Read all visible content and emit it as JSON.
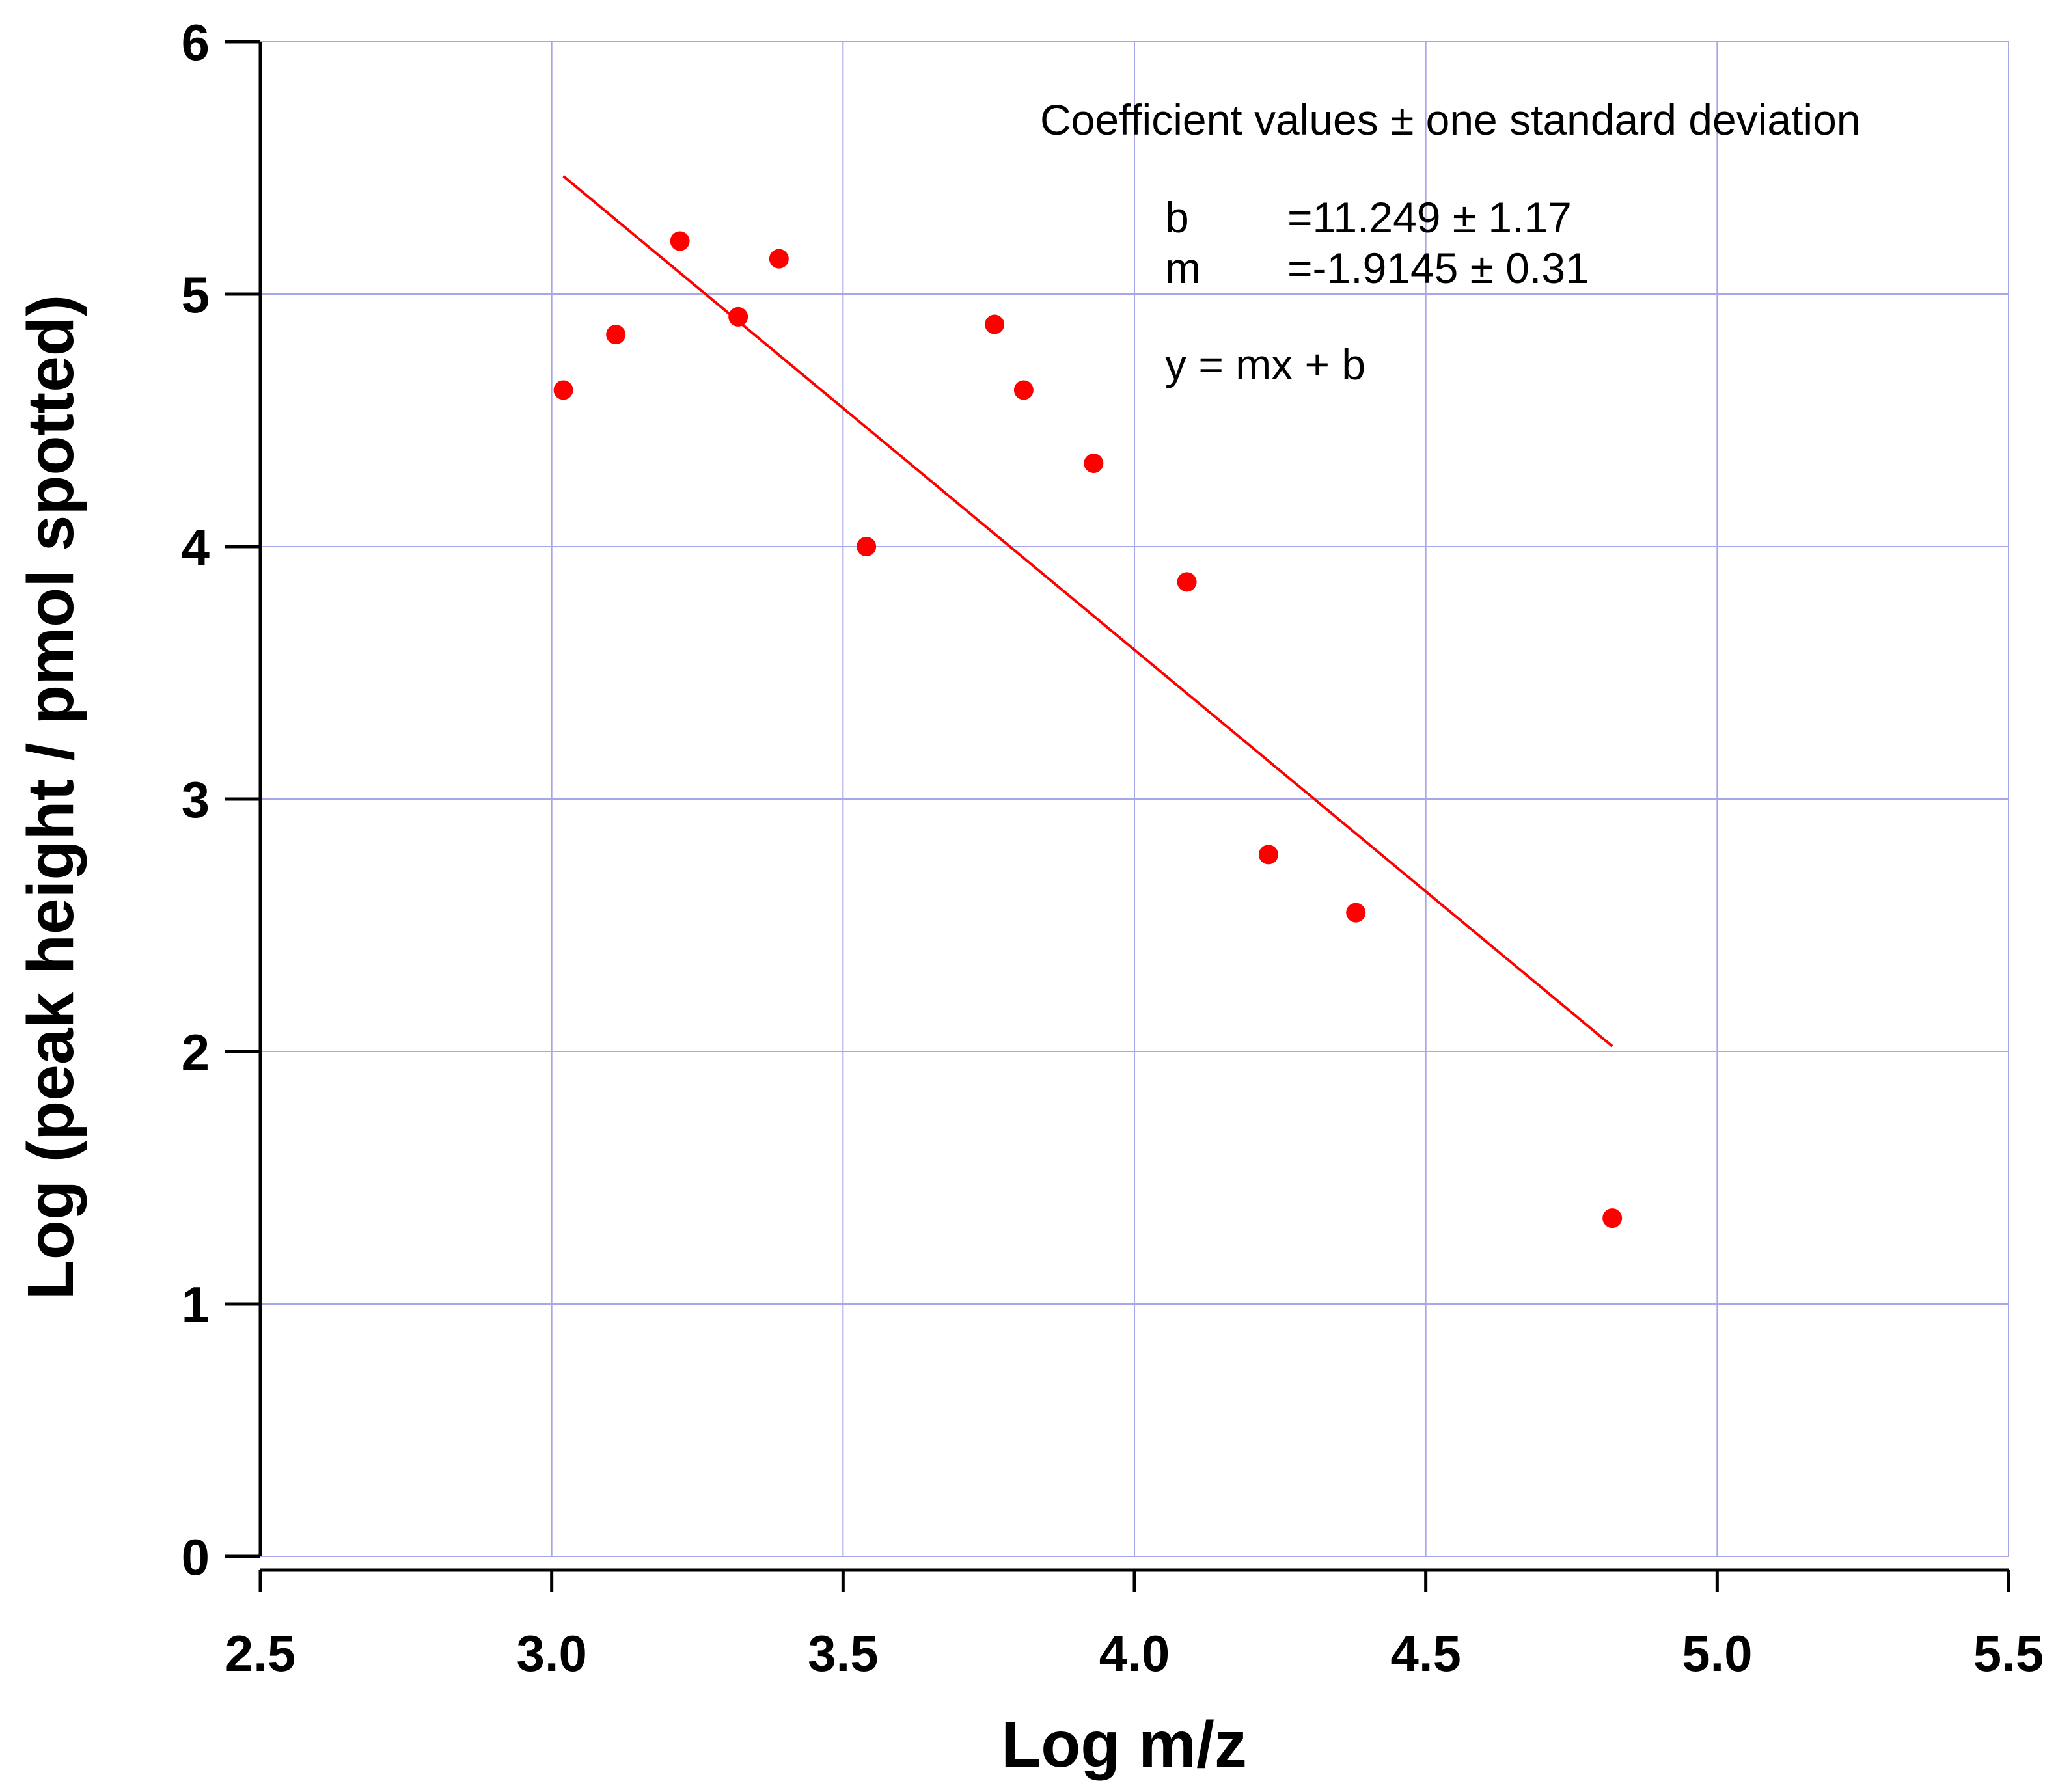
{
  "chart_data": {
    "type": "scatter",
    "title": "",
    "xlabel": "Log m/z",
    "ylabel": "Log (peak height / pmol spotted)",
    "xlim": [
      2.5,
      5.5
    ],
    "ylim": [
      0,
      6
    ],
    "grid": true,
    "x_ticks": [
      "2.5",
      "3.0",
      "3.5",
      "4.0",
      "4.5",
      "5.0",
      "5.5"
    ],
    "y_ticks": [
      "0",
      "1",
      "2",
      "3",
      "4",
      "5",
      "6"
    ],
    "series": [
      {
        "name": "data",
        "color": "#ff0000",
        "points": [
          {
            "x": 3.02,
            "y": 4.62
          },
          {
            "x": 3.11,
            "y": 4.84
          },
          {
            "x": 3.22,
            "y": 5.21
          },
          {
            "x": 3.32,
            "y": 4.91
          },
          {
            "x": 3.39,
            "y": 5.14
          },
          {
            "x": 3.54,
            "y": 4.0
          },
          {
            "x": 3.76,
            "y": 4.88
          },
          {
            "x": 3.81,
            "y": 4.62
          },
          {
            "x": 3.93,
            "y": 4.33
          },
          {
            "x": 4.09,
            "y": 3.86
          },
          {
            "x": 4.23,
            "y": 2.78
          },
          {
            "x": 4.38,
            "y": 2.55
          },
          {
            "x": 4.82,
            "y": 1.34
          }
        ]
      }
    ],
    "fit": {
      "type": "linear",
      "color": "#ff0000",
      "slope": -1.9145,
      "intercept": 11.249,
      "x_range": [
        3.02,
        4.82
      ]
    },
    "annotations": {
      "header": "Coefficient values ± one standard deviation",
      "b_label": "b",
      "b_value": "=11.249 ± 1.17",
      "m_label": "m",
      "m_value": "=-1.9145 ± 0.31",
      "equation": "y = mx + b"
    },
    "colors": {
      "grid": "#a6a6e8",
      "axis": "#000000",
      "marker": "#ff0000"
    }
  }
}
